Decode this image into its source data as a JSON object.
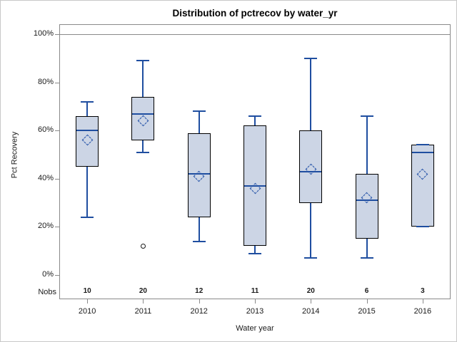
{
  "chart_data": {
    "type": "boxplot",
    "title": "Distribution of pctrecov by water_yr",
    "xlabel": "Water year",
    "ylabel": "Pct Recovery",
    "nobs_row_label": "Nobs",
    "ylim": [
      0,
      100
    ],
    "yticks_pct": [
      0,
      20,
      40,
      60,
      80,
      100
    ],
    "ytick_suffix": "%",
    "refline_pct": 100,
    "grid": false,
    "legend": "none",
    "categories": [
      "2010",
      "2011",
      "2012",
      "2013",
      "2014",
      "2015",
      "2016"
    ],
    "nobs": [
      10,
      20,
      12,
      11,
      20,
      6,
      3
    ],
    "boxes": [
      {
        "category": "2010",
        "nobs": 10,
        "min": 24,
        "q1": 45,
        "median": 60,
        "mean": 56,
        "q3": 66,
        "max": 72,
        "outliers": []
      },
      {
        "category": "2011",
        "nobs": 20,
        "min": 51,
        "q1": 56,
        "median": 67,
        "mean": 64,
        "q3": 74,
        "max": 89,
        "outliers": [
          12
        ]
      },
      {
        "category": "2012",
        "nobs": 12,
        "min": 14,
        "q1": 24,
        "median": 42,
        "mean": 41,
        "q3": 59,
        "max": 68,
        "outliers": []
      },
      {
        "category": "2013",
        "nobs": 11,
        "min": 9,
        "q1": 12,
        "median": 37,
        "mean": 36,
        "q3": 62,
        "max": 66,
        "outliers": []
      },
      {
        "category": "2014",
        "nobs": 20,
        "min": 7,
        "q1": 30,
        "median": 43,
        "mean": 44,
        "q3": 60,
        "max": 90,
        "outliers": []
      },
      {
        "category": "2015",
        "nobs": 6,
        "min": 7,
        "q1": 15,
        "median": 31,
        "mean": 32,
        "q3": 42,
        "max": 66,
        "outliers": []
      },
      {
        "category": "2016",
        "nobs": 3,
        "min": 20,
        "q1": 20,
        "median": 51,
        "mean": 42,
        "q3": 54,
        "max": 54,
        "outliers": []
      }
    ]
  },
  "colors": {
    "box_fill": "#ccd5e5",
    "box_border": "#000000",
    "whisker": "#1f4ea0",
    "median": "#1f4ea0",
    "mean_marker": "#2553a8",
    "outlier": "#1a1a1a",
    "frame": "#8a8a8a",
    "refline": "#8a8a8a",
    "text": "#1a1a1a",
    "figure_border": "#c8c8c8"
  }
}
